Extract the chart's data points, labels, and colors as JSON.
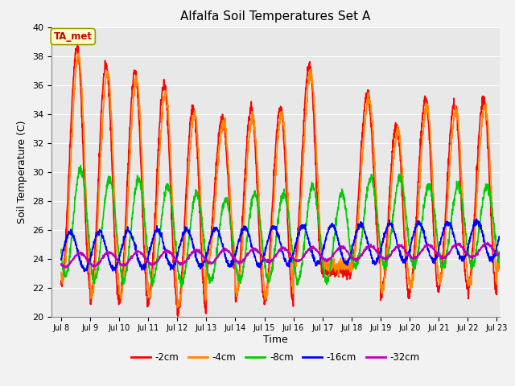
{
  "title": "Alfalfa Soil Temperatures Set A",
  "xlabel": "Time",
  "ylabel": "Soil Temperature (C)",
  "ylim": [
    20,
    40
  ],
  "xlim_days": [
    7.67,
    23.1
  ],
  "annotation_text": "TA_met",
  "annotation_color": "#cc0000",
  "annotation_bg": "#ffffcc",
  "annotation_border": "#999900",
  "plot_bg_color": "#e8e8e8",
  "fig_bg_color": "#f2f2f2",
  "series_colors": [
    "#ff0000",
    "#ff8800",
    "#00cc00",
    "#0000ff",
    "#bb00bb"
  ],
  "series_labels": [
    "-2cm",
    "-4cm",
    "-8cm",
    "-16cm",
    "-32cm"
  ],
  "xtick_labels": [
    "Jul 8",
    "Jul 9",
    "Jul 10",
    "Jul 11",
    "Jul 12",
    "Jul 13",
    "Jul 14",
    "Jul 15",
    "Jul 16",
    "Jul 17",
    "Jul 18",
    "Jul 19",
    "Jul 20",
    "Jul 21",
    "Jul 22",
    "Jul 23"
  ],
  "xtick_positions": [
    8,
    9,
    10,
    11,
    12,
    13,
    14,
    15,
    16,
    17,
    18,
    19,
    20,
    21,
    22,
    23
  ],
  "grid_color": "#ffffff",
  "linewidth": 1.2
}
